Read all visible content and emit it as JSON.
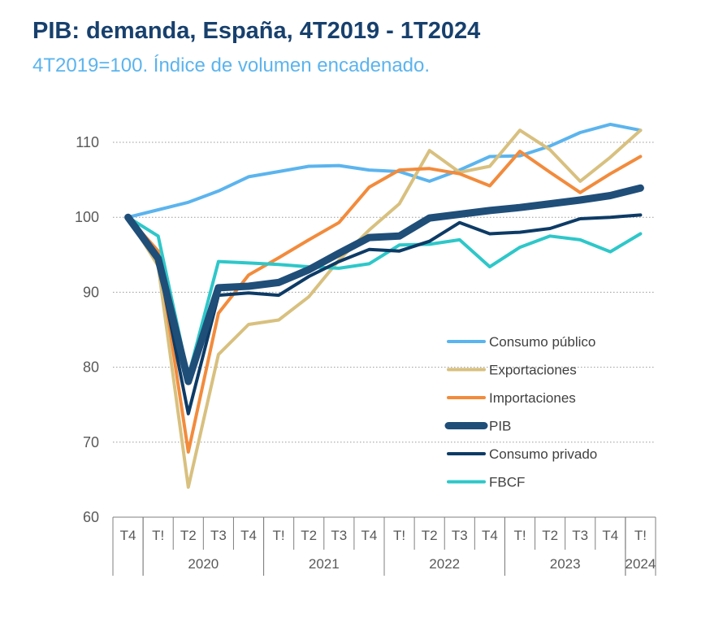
{
  "header": {
    "title": "PIB: demanda, España, 4T2019 - 1T2024",
    "subtitle": "4T2019=100. Índice de volumen encadenado."
  },
  "chart_data": {
    "type": "line",
    "title": "PIB: demanda, España, 4T2019 - 1T2024",
    "subtitle": "4T2019=100. Índice de volumen encadenado.",
    "xlabel": "",
    "ylabel": "",
    "ylim": [
      60,
      110
    ],
    "yticks": [
      60,
      70,
      80,
      90,
      100,
      110
    ],
    "grid": "horizontal dotted",
    "legend_position": "bottom-right inside plot",
    "x": [
      "T4",
      "T!",
      "T2",
      "T3",
      "T4",
      "T!",
      "T2",
      "T3",
      "T4",
      "T!",
      "T2",
      "T3",
      "T4",
      "T!",
      "T2",
      "T3",
      "T4",
      "T!"
    ],
    "year_groups": [
      {
        "label": "",
        "start": 0,
        "end": 0
      },
      {
        "label": "2020",
        "start": 1,
        "end": 4
      },
      {
        "label": "2021",
        "start": 5,
        "end": 8
      },
      {
        "label": "2022",
        "start": 9,
        "end": 12
      },
      {
        "label": "2023",
        "start": 13,
        "end": 16
      },
      {
        "label": "2024",
        "start": 17,
        "end": 17
      }
    ],
    "series": [
      {
        "name": "Consumo público",
        "color": "#5bb4ee",
        "width": 4,
        "values": [
          100,
          101.0,
          102.0,
          103.5,
          105.4,
          106.1,
          106.8,
          106.9,
          106.3,
          106.1,
          104.8,
          106.3,
          108.1,
          108.2,
          109.5,
          111.3,
          112.4,
          111.6
        ]
      },
      {
        "name": "Exportaciones",
        "color": "#d8c07f",
        "width": 4,
        "values": [
          100,
          93.5,
          64.0,
          81.7,
          85.7,
          86.3,
          89.4,
          94.3,
          98.3,
          101.8,
          108.9,
          106.0,
          106.8,
          111.6,
          109.0,
          104.8,
          108.0,
          111.6
        ]
      },
      {
        "name": "Importaciones",
        "color": "#f28b3c",
        "width": 4,
        "values": [
          100,
          95.5,
          68.7,
          87.2,
          92.3,
          94.6,
          97.0,
          99.3,
          104.0,
          106.3,
          106.5,
          105.8,
          104.2,
          108.8,
          106.0,
          103.3,
          105.8,
          108.1
        ]
      },
      {
        "name": "PIB",
        "color": "#1f4e79",
        "width": 9,
        "values": [
          100,
          94.5,
          78.1,
          90.6,
          90.8,
          91.3,
          93.0,
          95.2,
          97.3,
          97.5,
          99.9,
          100.4,
          100.9,
          101.3,
          101.8,
          102.3,
          102.9,
          103.9
        ]
      },
      {
        "name": "Consumo privado",
        "color": "#0d3b66",
        "width": 4,
        "values": [
          100,
          94.2,
          73.8,
          89.6,
          89.9,
          89.6,
          92.1,
          94.1,
          95.7,
          95.5,
          96.8,
          99.3,
          97.8,
          98.0,
          98.5,
          99.8,
          100.0,
          100.3
        ]
      },
      {
        "name": "FBCF",
        "color": "#2ec7c9",
        "width": 4,
        "values": [
          100,
          97.5,
          78.8,
          94.1,
          93.9,
          93.7,
          93.4,
          93.2,
          93.8,
          96.3,
          96.4,
          97.0,
          93.4,
          96.0,
          97.5,
          97.0,
          95.4,
          97.8
        ]
      }
    ]
  }
}
